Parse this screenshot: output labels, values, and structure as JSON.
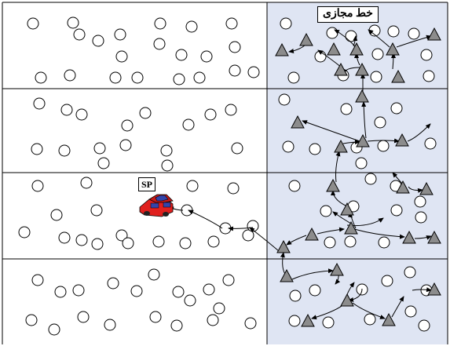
{
  "virtual_zone_label": "خط مجازی",
  "sp_label": "SP",
  "colors": {
    "background": "#ffffff",
    "virtual_zone_fill": "#dfe5f3",
    "border": "#000000",
    "triangle_fill": "#8c8c8c",
    "vehicle_body": "#e0201e",
    "vehicle_window": "#3344aa"
  },
  "icons": [
    "node-circle",
    "triangle-node",
    "vehicle-icon",
    "arrow"
  ]
}
